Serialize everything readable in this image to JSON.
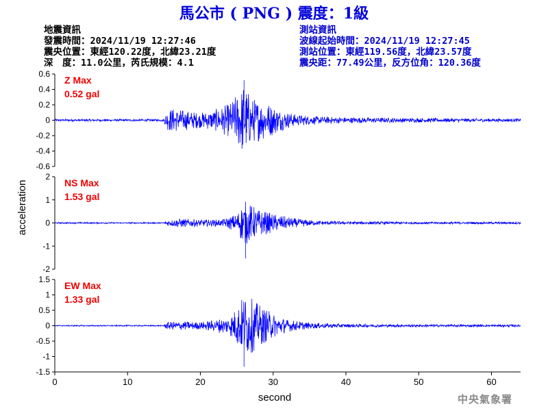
{
  "header": {
    "title": "馬公市 ( PNG ) 震度：1級"
  },
  "quake_info": {
    "heading": "地震資訊",
    "origin_time": "發震時間：2024/11/19 12:27:46",
    "epicenter": "震央位置：東經120.22度，北緯23.21度",
    "depth_magnitude": "深　度：11.0公里，芮氏規模：4.1"
  },
  "station_info": {
    "heading": "測站資訊",
    "wave_start": "波線起始時間：2024/11/19 12:27:45",
    "location": "測站位置：東經119.56度，北緯23.57度",
    "distance": "震央距：77.49公里，反方位角：120.36度"
  },
  "credit": "中央氣象署",
  "colors": {
    "title": "#0000dd",
    "trace": "#0000ff",
    "max_label": "#ee0000",
    "station_info": "#0000cc"
  },
  "chart_data": {
    "type": "line",
    "xlabel": "second",
    "ylabel": "acceleration",
    "xlim": [
      0,
      64
    ],
    "x_ticks": [
      "0",
      "10",
      "20",
      "30",
      "40",
      "50",
      "60"
    ],
    "series": [
      {
        "name": "Z",
        "max_label": "Z Max",
        "max_value": "0.52 gal",
        "ylim": [
          -0.6,
          0.6
        ],
        "y_ticks": [
          "0.6",
          "0.4",
          "0.2",
          "0",
          "-0.2",
          "-0.4",
          "-0.6"
        ],
        "envelope": [
          [
            0,
            0.015
          ],
          [
            15,
            0.015
          ],
          [
            15.3,
            0.12
          ],
          [
            16,
            0.16
          ],
          [
            18,
            0.13
          ],
          [
            20,
            0.1
          ],
          [
            22,
            0.14
          ],
          [
            24,
            0.22
          ],
          [
            25.5,
            0.4
          ],
          [
            26,
            0.5
          ],
          [
            27,
            0.3
          ],
          [
            29,
            0.25
          ],
          [
            31,
            0.14
          ],
          [
            33,
            0.08
          ],
          [
            36,
            0.05
          ],
          [
            40,
            0.04
          ],
          [
            48,
            0.03
          ],
          [
            64,
            0.02
          ]
        ],
        "peak": [
          26,
          0.52
        ]
      },
      {
        "name": "NS",
        "max_label": "NS Max",
        "max_value": "1.53 gal",
        "ylim": [
          -2,
          2
        ],
        "y_ticks": [
          "2",
          "1",
          "0",
          "-1",
          "-2"
        ],
        "envelope": [
          [
            0,
            0.03
          ],
          [
            15,
            0.03
          ],
          [
            15.3,
            0.12
          ],
          [
            17,
            0.2
          ],
          [
            20,
            0.15
          ],
          [
            23,
            0.15
          ],
          [
            25,
            0.4
          ],
          [
            26,
            1.0
          ],
          [
            27,
            0.8
          ],
          [
            28,
            0.6
          ],
          [
            30,
            0.4
          ],
          [
            33,
            0.2
          ],
          [
            36,
            0.1
          ],
          [
            40,
            0.07
          ],
          [
            50,
            0.05
          ],
          [
            64,
            0.05
          ]
        ],
        "peak": [
          26.2,
          -1.53
        ]
      },
      {
        "name": "EW",
        "max_label": "EW Max",
        "max_value": "1.33 gal",
        "ylim": [
          -1.5,
          1.5
        ],
        "y_ticks": [
          "1.5",
          "1",
          "0.5",
          "0",
          "-0.5",
          "-1",
          "-1.5"
        ],
        "envelope": [
          [
            0,
            0.02
          ],
          [
            15,
            0.02
          ],
          [
            15.3,
            0.12
          ],
          [
            17,
            0.15
          ],
          [
            20,
            0.12
          ],
          [
            22,
            0.2
          ],
          [
            24,
            0.3
          ],
          [
            25.5,
            0.8
          ],
          [
            26,
            1.1
          ],
          [
            27,
            0.9
          ],
          [
            28,
            0.7
          ],
          [
            30,
            0.4
          ],
          [
            32,
            0.2
          ],
          [
            35,
            0.1
          ],
          [
            40,
            0.06
          ],
          [
            50,
            0.04
          ],
          [
            64,
            0.04
          ]
        ],
        "peak": [
          26.0,
          -1.33
        ]
      }
    ]
  }
}
